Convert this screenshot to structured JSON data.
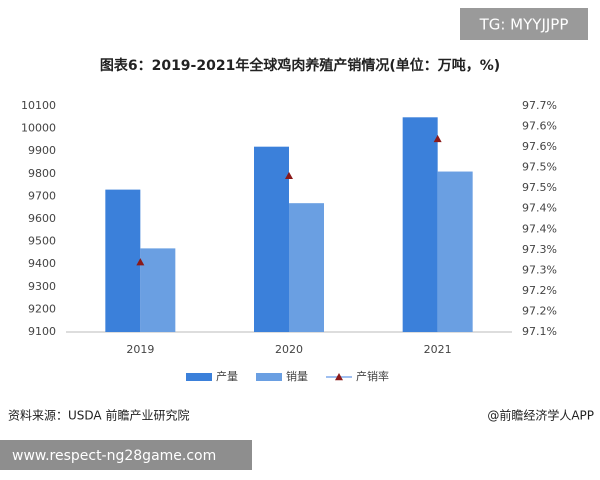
{
  "tag": "TG: MYYJJPP",
  "source": "资料来源：USDA 前瞻产业研究院",
  "credit": "@前瞻经济学人APP",
  "url_banner": "www.respect-ng28game.com",
  "chart_data": {
    "type": "bar",
    "title": "图表6：2019-2021年全球鸡肉养殖产销情况(单位：万吨，%)",
    "categories": [
      "2019",
      "2020",
      "2021"
    ],
    "series": [
      {
        "name": "产量",
        "color": "#3b80da",
        "values": [
          9730,
          9920,
          10050
        ]
      },
      {
        "name": "销量",
        "color": "#6a9fe2",
        "values": [
          9470,
          9670,
          9810
        ]
      },
      {
        "name": "产销率",
        "color": "#8b1a1a",
        "type": "line",
        "axis": "y2",
        "values": [
          97.27,
          97.48,
          97.57
        ]
      }
    ],
    "ylim": [
      9100,
      10100
    ],
    "yticks": [
      9100,
      9200,
      9300,
      9400,
      9500,
      9600,
      9700,
      9800,
      9900,
      10000,
      10100
    ],
    "y2lim": [
      97.1,
      97.65
    ],
    "y2ticks": [
      {
        "value": 97.1,
        "label": "97.1%"
      },
      {
        "value": 97.15,
        "label": "97.2%"
      },
      {
        "value": 97.2,
        "label": "97.2%"
      },
      {
        "value": 97.25,
        "label": "97.3%"
      },
      {
        "value": 97.3,
        "label": "97.3%"
      },
      {
        "value": 97.35,
        "label": "97.4%"
      },
      {
        "value": 97.4,
        "label": "97.4%"
      },
      {
        "value": 97.45,
        "label": "97.5%"
      },
      {
        "value": 97.5,
        "label": "97.5%"
      },
      {
        "value": 97.55,
        "label": "97.6%"
      },
      {
        "value": 97.6,
        "label": "97.6%"
      },
      {
        "value": 97.65,
        "label": "97.7%"
      }
    ],
    "grid": false
  }
}
